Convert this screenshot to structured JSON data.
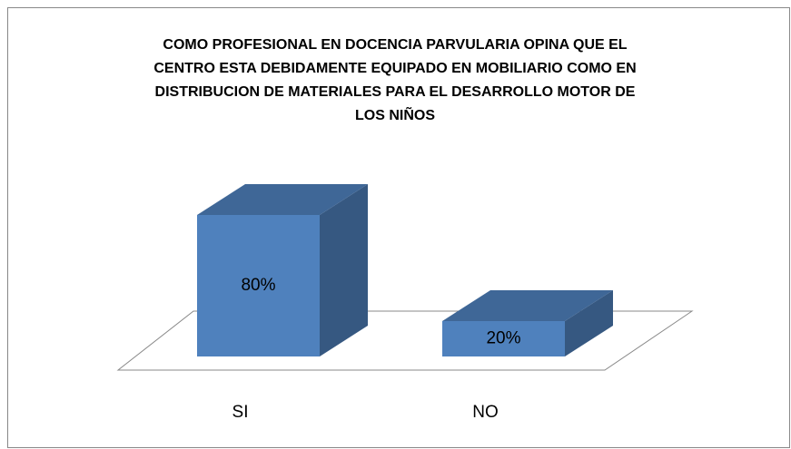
{
  "chart_data": {
    "type": "bar3d",
    "title": [
      "COMO PROFESIONAL EN DOCENCIA PARVULARIA OPINA QUE EL",
      "CENTRO ESTA DEBIDAMENTE EQUIPADO EN MOBILIARIO COMO EN",
      "DISTRIBUCION DE MATERIALES PARA EL DESARROLLO MOTOR DE",
      "LOS NIÑOS"
    ],
    "categories": [
      "SI",
      "NO"
    ],
    "values": [
      80,
      20
    ],
    "value_labels": [
      "80%",
      "20%"
    ],
    "color": "#4f81bd"
  }
}
